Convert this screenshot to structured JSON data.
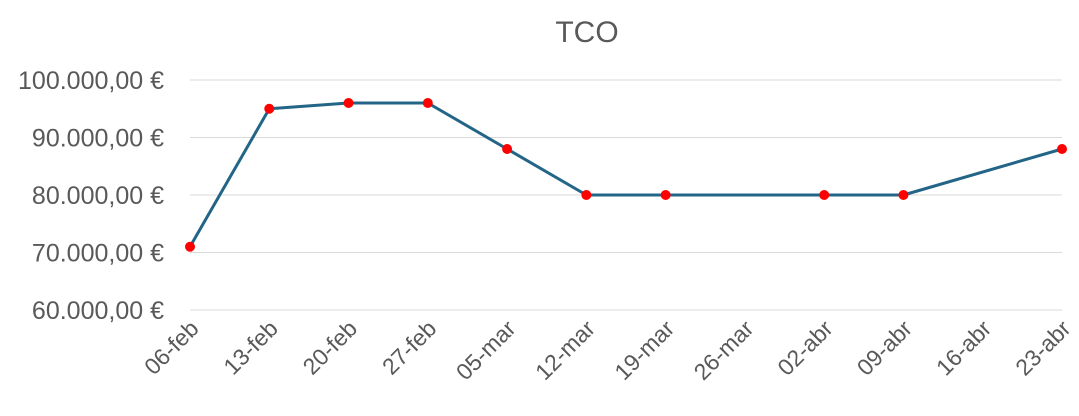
{
  "chart_data": {
    "type": "line",
    "title": "TCO",
    "xlabel": "",
    "ylabel": "",
    "ylim": [
      60000,
      100000
    ],
    "yticks": [
      "60.000,00 €",
      "70.000,00 €",
      "80.000,00 €",
      "90.000,00 €",
      "100.000,00 €"
    ],
    "categories": [
      "06-feb",
      "13-feb",
      "20-feb",
      "27-feb",
      "05-mar",
      "12-mar",
      "19-mar",
      "26-mar",
      "02-abr",
      "09-abr",
      "16-abr",
      "23-abr"
    ],
    "series": [
      {
        "values": [
          71000,
          95000,
          96000,
          96000,
          88000,
          80000,
          80000,
          null,
          80000,
          80000,
          null,
          88000
        ],
        "line_color": "#236587",
        "marker_color": "#ff0000"
      }
    ],
    "grid": true,
    "legend": "none"
  }
}
